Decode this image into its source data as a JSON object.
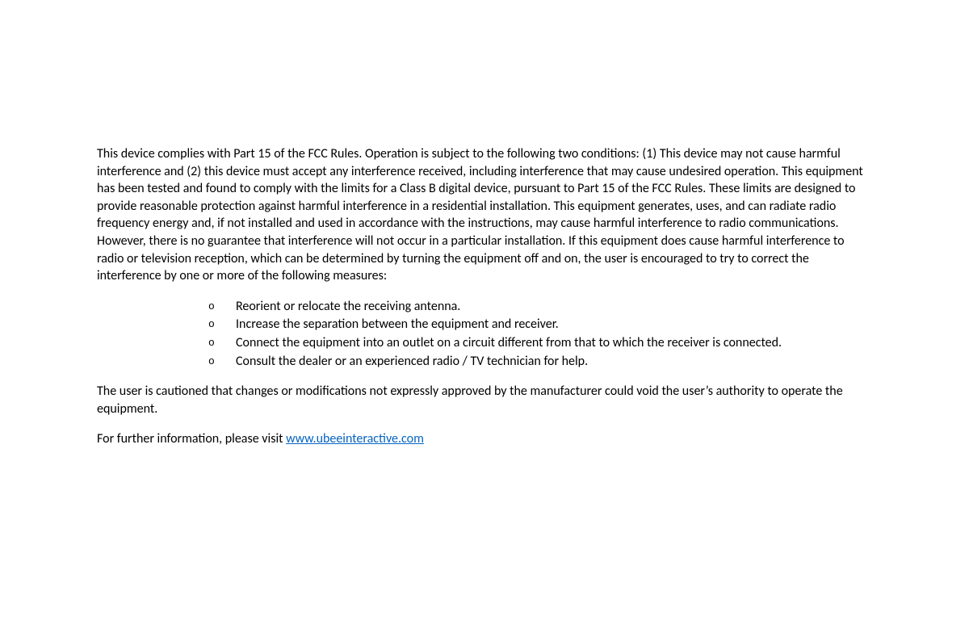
{
  "background_color": "#ffffff",
  "text_color": "#000000",
  "link_color": "#0563c1",
  "font_family": "Calibri",
  "font_size_pt": 12,
  "paragraph1": "This device complies with Part 15 of the FCC Rules. Operation is subject to the following two conditions: (1) This device may not cause harmful interference and (2) this device must accept any interference received, including interference that may cause undesired operation. This equipment has been tested and found to comply with the limits for a Class B digital device, pursuant to Part 15 of the FCC Rules. These limits are designed to provide reasonable protection against harmful interference in a residential installation. This equipment generates, uses, and can radiate radio frequency energy and, if not installed and used in accordance with the instructions, may cause harmful interference to radio communications. However, there is no guarantee that interference will not occur in a particular installation. If this equipment does cause harmful interference to radio or television reception, which can be determined by turning the equipment off and on, the user is encouraged to try to correct the interference by one or more of the following measures:",
  "bullets": [
    "Reorient or relocate the receiving antenna.",
    "Increase the separation between the equipment and receiver.",
    "Connect the equipment into an outlet on a circuit different from that to which the receiver is connected.",
    "Consult the dealer or an experienced radio / TV technician for help."
  ],
  "paragraph2": "The user is cautioned that changes or modifications not expressly approved by the manufacturer could void the user’s authority to operate the equipment.",
  "paragraph3_prefix": "For further information, please visit ",
  "link_text": "www.ubeeinteractive.com"
}
